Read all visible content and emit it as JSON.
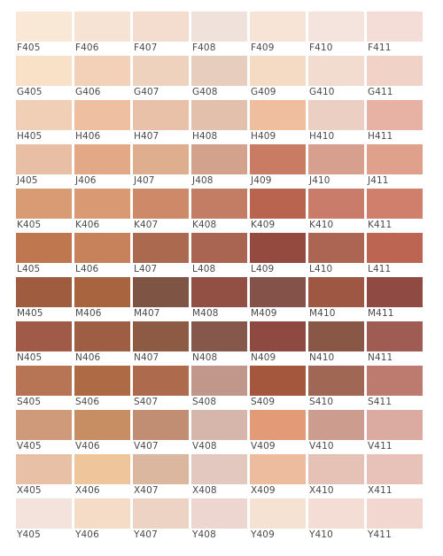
{
  "rows": [
    {
      "cells": [
        {
          "code": "F405",
          "color": "#f9e8d6"
        },
        {
          "code": "F406",
          "color": "#f7e3d4"
        },
        {
          "code": "F407",
          "color": "#f4ddcf"
        },
        {
          "code": "F408",
          "color": "#f0e1da"
        },
        {
          "code": "F409",
          "color": "#f7e4d7"
        },
        {
          "code": "F410",
          "color": "#f4e4dd"
        },
        {
          "code": "F411",
          "color": "#f4ddd6"
        }
      ]
    },
    {
      "cells": [
        {
          "code": "G405",
          "color": "#f8e1c6"
        },
        {
          "code": "G406",
          "color": "#f3d1b9"
        },
        {
          "code": "G407",
          "color": "#efd2bd"
        },
        {
          "code": "G408",
          "color": "#e6cdbe"
        },
        {
          "code": "G409",
          "color": "#f5dac4"
        },
        {
          "code": "G410",
          "color": "#f2dcd0"
        },
        {
          "code": "G411",
          "color": "#f1d2c6"
        }
      ]
    },
    {
      "cells": [
        {
          "code": "H405",
          "color": "#f1cfb6"
        },
        {
          "code": "H406",
          "color": "#eec0a1"
        },
        {
          "code": "H407",
          "color": "#e8c1a8"
        },
        {
          "code": "H408",
          "color": "#e2c0ac"
        },
        {
          "code": "H409",
          "color": "#eebe9f"
        },
        {
          "code": "H410",
          "color": "#ebcfc2"
        },
        {
          "code": "H411",
          "color": "#e7b2a3"
        }
      ]
    },
    {
      "cells": [
        {
          "code": "J405",
          "color": "#e8bfa4"
        },
        {
          "code": "J406",
          "color": "#e3a886"
        },
        {
          "code": "J407",
          "color": "#dfae8e"
        },
        {
          "code": "J408",
          "color": "#d3a28d"
        },
        {
          "code": "J409",
          "color": "#c97b63"
        },
        {
          "code": "J410",
          "color": "#d69f8e"
        },
        {
          "code": "J411",
          "color": "#dfa08c"
        }
      ]
    },
    {
      "cells": [
        {
          "code": "K405",
          "color": "#d89b74"
        },
        {
          "code": "K406",
          "color": "#d99a73"
        },
        {
          "code": "K407",
          "color": "#ce8a68"
        },
        {
          "code": "K408",
          "color": "#c37d64"
        },
        {
          "code": "K409",
          "color": "#b9644e"
        },
        {
          "code": "K410",
          "color": "#c87c69"
        },
        {
          "code": "K411",
          "color": "#d17f6d"
        }
      ]
    },
    {
      "cells": [
        {
          "code": "L405",
          "color": "#bf774f"
        },
        {
          "code": "L406",
          "color": "#c8825b"
        },
        {
          "code": "L407",
          "color": "#ab6a4f"
        },
        {
          "code": "L408",
          "color": "#a96452"
        },
        {
          "code": "L409",
          "color": "#954a3f"
        },
        {
          "code": "L410",
          "color": "#ac6553"
        },
        {
          "code": "L411",
          "color": "#bd6553"
        }
      ]
    },
    {
      "cells": [
        {
          "code": "M405",
          "color": "#a05c3f"
        },
        {
          "code": "M406",
          "color": "#a8633f"
        },
        {
          "code": "M407",
          "color": "#7e5444"
        },
        {
          "code": "M408",
          "color": "#924f43"
        },
        {
          "code": "M409",
          "color": "#85524a"
        },
        {
          "code": "M410",
          "color": "#9e5743"
        },
        {
          "code": "M411",
          "color": "#8f4b43"
        }
      ]
    },
    {
      "cells": [
        {
          "code": "N405",
          "color": "#9f5a48"
        },
        {
          "code": "N406",
          "color": "#9e5e43"
        },
        {
          "code": "N407",
          "color": "#8d5a44"
        },
        {
          "code": "N408",
          "color": "#85584b"
        },
        {
          "code": "N409",
          "color": "#8e4a41"
        },
        {
          "code": "N410",
          "color": "#895745"
        },
        {
          "code": "N411",
          "color": "#9e5c52"
        }
      ]
    },
    {
      "cells": [
        {
          "code": "S405",
          "color": "#b87556"
        },
        {
          "code": "S406",
          "color": "#ad6a45"
        },
        {
          "code": "S407",
          "color": "#ad6a4d"
        },
        {
          "code": "S408",
          "color": "#c1978b"
        },
        {
          "code": "S409",
          "color": "#a5573e"
        },
        {
          "code": "S410",
          "color": "#9f6754"
        },
        {
          "code": "S411",
          "color": "#bd7a6e"
        }
      ]
    },
    {
      "cells": [
        {
          "code": "V405",
          "color": "#cf9a79"
        },
        {
          "code": "V406",
          "color": "#c88e63"
        },
        {
          "code": "V407",
          "color": "#c18e73"
        },
        {
          "code": "V408",
          "color": "#d6b5aa"
        },
        {
          "code": "V409",
          "color": "#e29a77"
        },
        {
          "code": "V410",
          "color": "#cc9d8e"
        },
        {
          "code": "V411",
          "color": "#dbaba1"
        }
      ]
    },
    {
      "cells": [
        {
          "code": "X405",
          "color": "#e8c0a6"
        },
        {
          "code": "X406",
          "color": "#efc59b"
        },
        {
          "code": "X407",
          "color": "#dcb7a0"
        },
        {
          "code": "X408",
          "color": "#e3c8c0"
        },
        {
          "code": "X409",
          "color": "#edbb9d"
        },
        {
          "code": "X410",
          "color": "#e5c2b5"
        },
        {
          "code": "X411",
          "color": "#e8c2b9"
        }
      ]
    },
    {
      "cells": [
        {
          "code": "Y405",
          "color": "#f3e3dc"
        },
        {
          "code": "Y406",
          "color": "#f5dcc6"
        },
        {
          "code": "Y407",
          "color": "#ecd3c4"
        },
        {
          "code": "Y408",
          "color": "#edd6cf"
        },
        {
          "code": "Y409",
          "color": "#f6e2d3"
        },
        {
          "code": "Y410",
          "color": "#f3ddd5"
        },
        {
          "code": "Y411",
          "color": "#f2d7d0"
        }
      ]
    }
  ]
}
